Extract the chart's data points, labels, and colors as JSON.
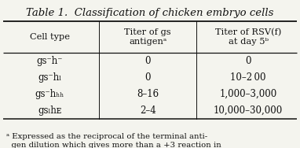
{
  "title": "Table 1.  Classification of chicken embryo cells",
  "col_labels": [
    "Cell type",
    "Titer of gs\nantigenᵃ",
    "Titer of RSV(f)\nat day 5ᵇ"
  ],
  "rows": [
    [
      "gs⁻h⁻",
      "0",
      "0"
    ],
    [
      "gs⁻hₗ",
      "0",
      "10–2 00"
    ],
    [
      "gs⁻hₕₕ",
      "8–16",
      "1,000–3,000"
    ],
    [
      "gsₗhᴇ",
      "2–4",
      "10,000–30,000"
    ]
  ],
  "footnote": "ᵃ Expressed as the reciprocal of the terminal anti-\n  gen dilution which gives more than a +3 reaction in",
  "bg": "#f4f4ee",
  "fg": "#111111",
  "col_splits": [
    0.33,
    0.655
  ],
  "title_fs": 9.5,
  "header_fs": 8.2,
  "data_fs": 8.5,
  "note_fs": 7.3
}
